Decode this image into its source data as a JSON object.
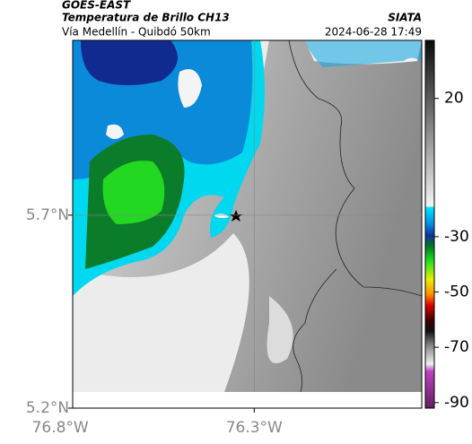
{
  "header": {
    "source": "GOES-EAST",
    "title": "Temperatura de Brillo CH13",
    "route": "Vía Medellín - Quibdó 50km",
    "agency": "SIATA",
    "timestamp": "2024-06-28 17:49"
  },
  "map": {
    "xlim": [
      -76.768,
      -75.868
    ],
    "ylim": [
      5.2,
      6.153
    ],
    "xticks": [
      {
        "value": -76.8,
        "label": "76.8°W"
      },
      {
        "value": -76.3,
        "label": "76.3°W"
      }
    ],
    "yticks": [
      {
        "value": 5.2,
        "label": "5.2°N"
      },
      {
        "value": 5.7,
        "label": "5.7°N"
      }
    ],
    "colorbar": {
      "clim": [
        -92,
        41
      ],
      "ticks": [
        20,
        -30,
        -50,
        -70,
        -90
      ]
    }
  }
}
